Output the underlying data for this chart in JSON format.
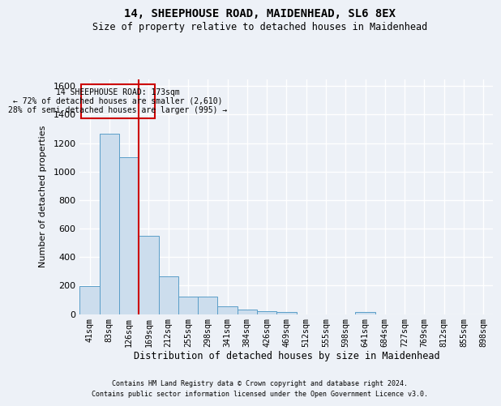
{
  "title": "14, SHEEPHOUSE ROAD, MAIDENHEAD, SL6 8EX",
  "subtitle": "Size of property relative to detached houses in Maidenhead",
  "xlabel": "Distribution of detached houses by size in Maidenhead",
  "ylabel": "Number of detached properties",
  "footnote1": "Contains HM Land Registry data © Crown copyright and database right 2024.",
  "footnote2": "Contains public sector information licensed under the Open Government Licence v3.0.",
  "categories": [
    "41sqm",
    "83sqm",
    "126sqm",
    "169sqm",
    "212sqm",
    "255sqm",
    "298sqm",
    "341sqm",
    "384sqm",
    "426sqm",
    "469sqm",
    "512sqm",
    "555sqm",
    "598sqm",
    "641sqm",
    "684sqm",
    "727sqm",
    "769sqm",
    "812sqm",
    "855sqm",
    "898sqm"
  ],
  "values": [
    196,
    1265,
    1100,
    550,
    265,
    120,
    120,
    55,
    30,
    20,
    13,
    0,
    0,
    0,
    13,
    0,
    0,
    0,
    0,
    0,
    0
  ],
  "bar_color": "#ccdded",
  "bar_edge_color": "#5a9ec8",
  "vline_index": 3,
  "vline_color": "#cc0000",
  "annotation_line1": "14 SHEEPHOUSE ROAD: 173sqm",
  "annotation_line2": "← 72% of detached houses are smaller (2,610)",
  "annotation_line3": "28% of semi-detached houses are larger (995) →",
  "ylim_max": 1650,
  "yticks": [
    0,
    200,
    400,
    600,
    800,
    1000,
    1200,
    1400,
    1600
  ],
  "bg_color": "#edf1f7",
  "grid_color": "#ffffff"
}
